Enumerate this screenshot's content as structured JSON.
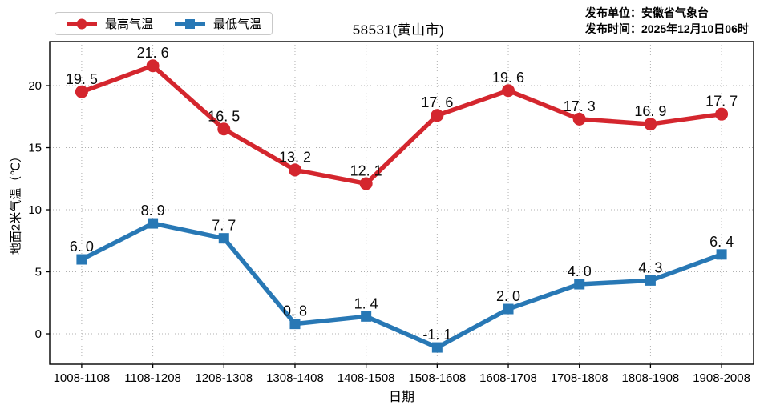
{
  "header": {
    "publisher_unit": "发布单位：安徽省气象台",
    "publish_time": "发布时间：2025年12月10日06时"
  },
  "chart_data": {
    "type": "line",
    "title": "58531(黄山市)",
    "xlabel": "日期",
    "ylabel": "地面2米气温（℃）",
    "categories": [
      "1008-1108",
      "1108-1208",
      "1208-1308",
      "1308-1408",
      "1408-1508",
      "1508-1608",
      "1608-1708",
      "1708-1808",
      "1808-1908",
      "1908-2008"
    ],
    "series": [
      {
        "name": "最高气温",
        "slug": "max-temp",
        "color": "#d4262e",
        "marker": "circle",
        "values": [
          19.5,
          21.6,
          16.5,
          13.2,
          12.1,
          17.6,
          19.6,
          17.3,
          16.9,
          17.7
        ]
      },
      {
        "name": "最低气温",
        "slug": "min-temp",
        "color": "#2878b5",
        "marker": "square",
        "values": [
          6.0,
          8.9,
          7.7,
          0.8,
          1.4,
          -1.1,
          2.0,
          4.0,
          4.3,
          6.4
        ]
      }
    ],
    "yticks": [
      0,
      5,
      10,
      15,
      20
    ],
    "ylim": [
      -2.45,
      23.55
    ],
    "grid": true,
    "grid_style": "dotted",
    "legend_position": "top-left-above-axes"
  }
}
